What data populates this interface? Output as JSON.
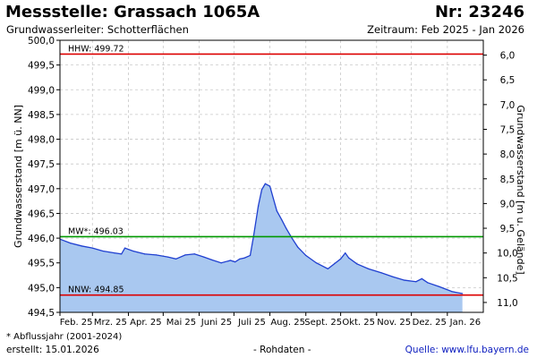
{
  "header": {
    "title": "Messstelle: Grassach 1065A",
    "number": "Nr: 23246",
    "aquifer": "Grundwasserleiter:   Schotterflächen",
    "period": "Zeitraum: Feb 2025 - Jan 2026"
  },
  "footer": {
    "note": "* Abflussjahr (2001-2024)",
    "created": "erstellt:  15.01.2026",
    "raw": "- Rohdaten -",
    "source": "Quelle: www.lfu.bayern.de"
  },
  "colors": {
    "fill": "#a9c8f0",
    "line": "#1f3fd0",
    "hhw": "#dd0000",
    "mw": "#009900",
    "nnw": "#dd0000",
    "grid": "#c8c8c8"
  },
  "chart_data": {
    "type": "area",
    "ylabel": "Grundwasserstand [m ü. NN]",
    "ylabel_right": "Grundwasserstand [m u. Gelände]",
    "ylim": [
      494.5,
      500.0
    ],
    "yticks": [
      "494,5",
      "495,0",
      "495,5",
      "496,0",
      "496,5",
      "497,0",
      "497,5",
      "498,0",
      "498,5",
      "499,0",
      "499,5",
      "500,0"
    ],
    "yticks_right": [
      "6,0",
      "6,5",
      "7,0",
      "7,5",
      "8,0",
      "8,5",
      "9,0",
      "9,5",
      "10,0",
      "10,5",
      "11,0"
    ],
    "months": [
      "Feb. 25",
      "Mrz. 25",
      "Apr. 25",
      "Mai 25",
      "Juni 25",
      "Juli 25",
      "Aug. 25",
      "Sept. 25",
      "Okt. 25",
      "Nov. 25",
      "Dez. 25",
      "Jan. 26"
    ],
    "grid": true,
    "reference_lines": [
      {
        "label": "HHW: 499.72",
        "value": 499.72
      },
      {
        "label": "MW*: 496.03",
        "value": 496.03
      },
      {
        "label": "NNW: 494.85",
        "value": 494.85
      }
    ],
    "series": [
      {
        "x": [
          "2025-02-01",
          "2025-02-10",
          "2025-02-20",
          "2025-03-01",
          "2025-03-10",
          "2025-03-20",
          "2025-03-26",
          "2025-03-29",
          "2025-04-05",
          "2025-04-15",
          "2025-04-25",
          "2025-05-05",
          "2025-05-12",
          "2025-05-20",
          "2025-05-28",
          "2025-06-05",
          "2025-06-12",
          "2025-06-20",
          "2025-06-28",
          "2025-07-02",
          "2025-07-06",
          "2025-07-10",
          "2025-07-15",
          "2025-07-18",
          "2025-07-22",
          "2025-07-25",
          "2025-07-28",
          "2025-08-01",
          "2025-08-04",
          "2025-08-07",
          "2025-08-11",
          "2025-08-15",
          "2025-08-20",
          "2025-08-25",
          "2025-09-01",
          "2025-09-10",
          "2025-09-20",
          "2025-10-01",
          "2025-10-05",
          "2025-10-08",
          "2025-10-15",
          "2025-10-25",
          "2025-11-05",
          "2025-11-15",
          "2025-11-25",
          "2025-12-05",
          "2025-12-10",
          "2025-12-15",
          "2025-12-25",
          "2026-01-05",
          "2026-01-14"
        ],
        "values": [
          495.98,
          495.9,
          495.84,
          495.8,
          495.74,
          495.7,
          495.68,
          495.8,
          495.74,
          495.68,
          495.66,
          495.62,
          495.58,
          495.66,
          495.68,
          495.62,
          495.56,
          495.5,
          495.55,
          495.52,
          495.58,
          495.6,
          495.65,
          496.05,
          496.65,
          496.98,
          497.1,
          497.05,
          496.8,
          496.55,
          496.38,
          496.2,
          496.0,
          495.82,
          495.65,
          495.5,
          495.38,
          495.58,
          495.7,
          495.6,
          495.48,
          495.38,
          495.3,
          495.22,
          495.15,
          495.12,
          495.18,
          495.1,
          495.02,
          494.92,
          494.88
        ]
      }
    ]
  }
}
